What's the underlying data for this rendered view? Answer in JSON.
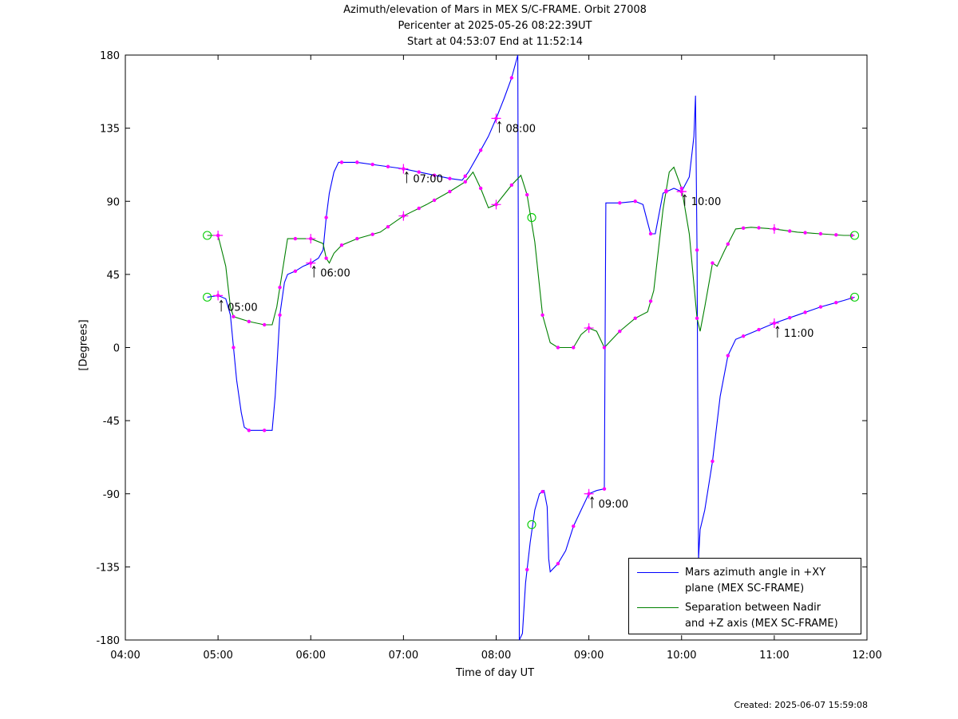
{
  "chart_data": {
    "type": "line",
    "title_lines": [
      "Azimuth/elevation of Mars in MEX S/C-FRAME.  Orbit 27008",
      "Pericenter at 2025-05-26 08:22:39UT",
      "Start at 04:53:07 End at 11:52:14"
    ],
    "xlabel": "Time of day UT",
    "ylabel": "[Degrees]",
    "xlim": [
      "04:00",
      "12:00"
    ],
    "ylim": [
      -180,
      180
    ],
    "x_ticks": [
      "04:00",
      "05:00",
      "06:00",
      "07:00",
      "08:00",
      "09:00",
      "10:00",
      "11:00",
      "12:00"
    ],
    "y_ticks": [
      "180",
      "135",
      "90",
      "45",
      "0",
      "-45",
      "-90",
      "-135",
      "-180"
    ],
    "legend_position": "bottom-right",
    "grid": false,
    "series": [
      {
        "name": "Mars azimuth angle in +XY plane (MEX SC-FRAME)",
        "legend_lines": [
          "Mars azimuth angle in +XY",
          "plane (MEX SC-FRAME)"
        ],
        "color": "#0000ff",
        "points": [
          [
            "04:53",
            31
          ],
          [
            "05:00",
            32
          ],
          [
            "05:05",
            30
          ],
          [
            "05:08",
            20
          ],
          [
            "05:10",
            0
          ],
          [
            "05:12",
            -20
          ],
          [
            "05:15",
            -40
          ],
          [
            "05:17",
            -49
          ],
          [
            "05:20",
            -51
          ],
          [
            "05:30",
            -51
          ],
          [
            "05:35",
            -51
          ],
          [
            "05:37",
            -30
          ],
          [
            "05:40",
            20
          ],
          [
            "05:43",
            40
          ],
          [
            "05:45",
            45
          ],
          [
            "05:50",
            47
          ],
          [
            "05:55",
            50
          ],
          [
            "06:00",
            52
          ],
          [
            "06:05",
            55
          ],
          [
            "06:08",
            60
          ],
          [
            "06:10",
            80
          ],
          [
            "06:12",
            95
          ],
          [
            "06:15",
            108
          ],
          [
            "06:18",
            114
          ],
          [
            "06:30",
            114
          ],
          [
            "06:45",
            112
          ],
          [
            "07:00",
            110
          ],
          [
            "07:15",
            107
          ],
          [
            "07:30",
            104
          ],
          [
            "07:38",
            103
          ],
          [
            "07:42",
            108
          ],
          [
            "07:48",
            118
          ],
          [
            "07:55",
            130
          ],
          [
            "08:00",
            141
          ],
          [
            "08:05",
            153
          ],
          [
            "08:10",
            166
          ],
          [
            "08:14",
            180
          ],
          [
            "08:14:30",
            0
          ],
          [
            "08:15",
            -180
          ],
          [
            "08:17",
            -176
          ],
          [
            "08:19",
            -145
          ],
          [
            "08:22",
            -120
          ],
          [
            "08:25",
            -100
          ],
          [
            "08:28",
            -90
          ],
          [
            "08:31",
            -88
          ],
          [
            "08:33",
            -98
          ],
          [
            "08:34",
            -130
          ],
          [
            "08:35",
            -138
          ],
          [
            "08:40",
            -133
          ],
          [
            "08:45",
            -125
          ],
          [
            "08:50",
            -110
          ],
          [
            "08:55",
            -100
          ],
          [
            "09:00",
            -90
          ],
          [
            "09:05",
            -88
          ],
          [
            "09:10",
            -87
          ],
          [
            "09:10:30",
            0
          ],
          [
            "09:11",
            89
          ],
          [
            "09:20",
            89
          ],
          [
            "09:30",
            90
          ],
          [
            "09:35",
            88
          ],
          [
            "09:38",
            77
          ],
          [
            "09:40",
            70
          ],
          [
            "09:43",
            70
          ],
          [
            "09:45",
            80
          ],
          [
            "09:48",
            95
          ],
          [
            "09:55",
            98
          ],
          [
            "10:00",
            96
          ],
          [
            "10:05",
            105
          ],
          [
            "10:08",
            130
          ],
          [
            "10:09",
            155
          ],
          [
            "10:10",
            60
          ],
          [
            "10:11",
            -130
          ],
          [
            "10:12",
            -112
          ],
          [
            "10:15",
            -100
          ],
          [
            "10:20",
            -70
          ],
          [
            "10:25",
            -30
          ],
          [
            "10:30",
            -5
          ],
          [
            "10:35",
            5
          ],
          [
            "10:45",
            9
          ],
          [
            "11:00",
            15
          ],
          [
            "11:15",
            20
          ],
          [
            "11:30",
            25
          ],
          [
            "11:45",
            29
          ],
          [
            "11:52",
            31
          ]
        ]
      },
      {
        "name": "Separation between Nadir and +Z axis (MEX SC-FRAME)",
        "legend_lines": [
          "Separation between Nadir",
          "and +Z axis (MEX SC-FRAME)"
        ],
        "color": "#008000",
        "points": [
          [
            "04:53",
            69
          ],
          [
            "05:00",
            69
          ],
          [
            "05:05",
            50
          ],
          [
            "05:08",
            25
          ],
          [
            "05:10",
            19
          ],
          [
            "05:20",
            16
          ],
          [
            "05:30",
            14
          ],
          [
            "05:35",
            14
          ],
          [
            "05:38",
            25
          ],
          [
            "05:45",
            67
          ],
          [
            "05:55",
            67
          ],
          [
            "06:00",
            67
          ],
          [
            "06:08",
            64
          ],
          [
            "06:10",
            55
          ],
          [
            "06:12",
            52
          ],
          [
            "06:15",
            58
          ],
          [
            "06:20",
            63
          ],
          [
            "06:30",
            67
          ],
          [
            "06:45",
            71
          ],
          [
            "07:00",
            81
          ],
          [
            "07:15",
            88
          ],
          [
            "07:30",
            96
          ],
          [
            "07:40",
            102
          ],
          [
            "07:45",
            108
          ],
          [
            "07:50",
            98
          ],
          [
            "07:55",
            86
          ],
          [
            "08:00",
            88
          ],
          [
            "08:10",
            100
          ],
          [
            "08:16",
            106
          ],
          [
            "08:20",
            94
          ],
          [
            "08:25",
            65
          ],
          [
            "08:30",
            20
          ],
          [
            "08:35",
            3
          ],
          [
            "08:40",
            0
          ],
          [
            "08:50",
            0
          ],
          [
            "08:55",
            8
          ],
          [
            "09:00",
            12
          ],
          [
            "09:05",
            10
          ],
          [
            "09:10",
            0
          ],
          [
            "09:20",
            10
          ],
          [
            "09:30",
            18
          ],
          [
            "09:38",
            22
          ],
          [
            "09:42",
            35
          ],
          [
            "09:45",
            60
          ],
          [
            "09:48",
            85
          ],
          [
            "09:52",
            108
          ],
          [
            "09:55",
            111
          ],
          [
            "10:00",
            98
          ],
          [
            "10:05",
            70
          ],
          [
            "10:10",
            18
          ],
          [
            "10:12",
            10
          ],
          [
            "10:15",
            25
          ],
          [
            "10:20",
            52
          ],
          [
            "10:23",
            50
          ],
          [
            "10:28",
            60
          ],
          [
            "10:35",
            73
          ],
          [
            "10:45",
            74
          ],
          [
            "11:00",
            73
          ],
          [
            "11:15",
            71
          ],
          [
            "11:30",
            70
          ],
          [
            "11:45",
            69
          ],
          [
            "11:52",
            69
          ]
        ]
      }
    ],
    "annotations": [
      {
        "text": "05:00",
        "at": [
          "05:00",
          31
        ]
      },
      {
        "text": "06:00",
        "at": [
          "06:00",
          52
        ]
      },
      {
        "text": "07:00",
        "at": [
          "07:00",
          110
        ]
      },
      {
        "text": "08:00",
        "at": [
          "08:00",
          141
        ]
      },
      {
        "text": "09:00",
        "at": [
          "09:00",
          -90
        ]
      },
      {
        "text": "10:00",
        "at": [
          "10:00",
          96
        ]
      },
      {
        "text": "11:00",
        "at": [
          "11:00",
          15
        ]
      }
    ],
    "circle_markers": [
      [
        "04:53",
        69
      ],
      [
        "04:53",
        31
      ],
      [
        "08:23",
        80
      ],
      [
        "08:23",
        -109
      ],
      [
        "11:52",
        69
      ],
      [
        "11:52",
        31
      ]
    ],
    "plus_markers": [
      [
        "05:00",
        69
      ],
      [
        "05:00",
        32
      ],
      [
        "06:00",
        67
      ],
      [
        "06:00",
        52
      ],
      [
        "07:00",
        110
      ],
      [
        "07:00",
        81
      ],
      [
        "08:00",
        141
      ],
      [
        "08:00",
        88
      ],
      [
        "09:00",
        -90
      ],
      [
        "09:00",
        12
      ],
      [
        "10:00",
        96
      ],
      [
        "10:00",
        96
      ],
      [
        "11:00",
        15
      ],
      [
        "11:00",
        73
      ]
    ],
    "dot_marker_interval_min": 10
  },
  "footer": {
    "created": "Created: 2025-06-07 15:59:08"
  },
  "colors": {
    "marker_dot": "#ff00ff",
    "marker_circle": "#00cc00"
  }
}
